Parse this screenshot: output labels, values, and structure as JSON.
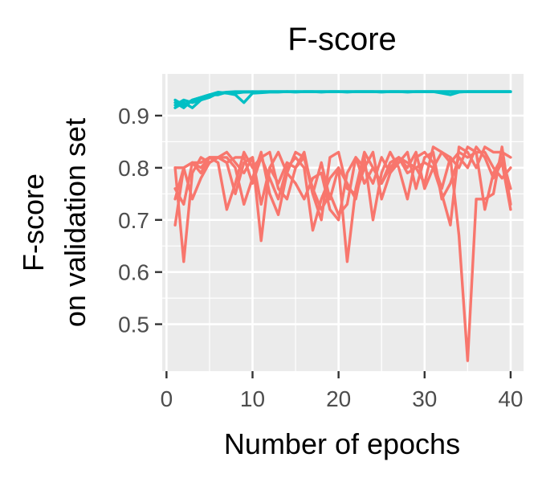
{
  "chart_data": {
    "type": "line",
    "title": "F-score",
    "xlabel": "Number of epochs",
    "ylabel_lines": [
      "F-score",
      "on validation set"
    ],
    "xlim": [
      -0.5,
      41.5
    ],
    "ylim": [
      0.41,
      0.98
    ],
    "x_ticks": [
      0,
      10,
      20,
      30,
      40
    ],
    "y_ticks": [
      0.5,
      0.6,
      0.7,
      0.8,
      0.9
    ],
    "x_tick_labels": [
      "0",
      "10",
      "20",
      "30",
      "40"
    ],
    "y_tick_labels": [
      "0.5",
      "0.6",
      "0.7",
      "0.8",
      "0.9"
    ],
    "grid": true,
    "legend": "none",
    "colors": {
      "group_a": "#00BFC4",
      "group_b": "#F8766D",
      "panel": "#EBEBEB",
      "grid": "#FFFFFF"
    },
    "x": [
      1,
      2,
      3,
      4,
      5,
      6,
      7,
      8,
      9,
      10,
      11,
      12,
      13,
      14,
      15,
      16,
      17,
      18,
      19,
      20,
      21,
      22,
      23,
      24,
      25,
      26,
      27,
      28,
      29,
      30,
      31,
      32,
      33,
      34,
      35,
      36,
      37,
      38,
      39,
      40
    ],
    "series": [
      {
        "group": "group_a",
        "values": [
          0.93,
          0.92,
          0.93,
          0.935,
          0.94,
          0.94,
          0.945,
          0.943,
          0.945,
          0.945,
          0.946,
          0.946,
          0.946,
          0.946,
          0.946,
          0.946,
          0.946,
          0.946,
          0.946,
          0.946,
          0.946,
          0.946,
          0.946,
          0.946,
          0.946,
          0.946,
          0.946,
          0.946,
          0.946,
          0.946,
          0.946,
          0.946,
          0.946,
          0.946,
          0.946,
          0.946,
          0.946,
          0.946,
          0.946,
          0.946
        ]
      },
      {
        "group": "group_a",
        "values": [
          0.915,
          0.925,
          0.915,
          0.93,
          0.94,
          0.945,
          0.943,
          0.94,
          0.925,
          0.943,
          0.944,
          0.945,
          0.945,
          0.946,
          0.945,
          0.946,
          0.946,
          0.945,
          0.946,
          0.946,
          0.945,
          0.946,
          0.946,
          0.946,
          0.945,
          0.946,
          0.946,
          0.945,
          0.946,
          0.946,
          0.946,
          0.943,
          0.94,
          0.945,
          0.946,
          0.946,
          0.946,
          0.946,
          0.946,
          0.946
        ]
      },
      {
        "group": "group_a",
        "values": [
          0.92,
          0.93,
          0.925,
          0.93,
          0.935,
          0.943,
          0.945,
          0.946,
          0.946,
          0.946,
          0.946,
          0.946,
          0.946,
          0.946,
          0.946,
          0.946,
          0.946,
          0.946,
          0.946,
          0.946,
          0.946,
          0.946,
          0.946,
          0.946,
          0.946,
          0.946,
          0.946,
          0.946,
          0.946,
          0.946,
          0.946,
          0.946,
          0.946,
          0.946,
          0.946,
          0.946,
          0.946,
          0.946,
          0.946,
          0.946
        ]
      },
      {
        "group": "group_a",
        "values": [
          0.925,
          0.915,
          0.93,
          0.935,
          0.94,
          0.942,
          0.944,
          0.945,
          0.945,
          0.946,
          0.945,
          0.946,
          0.946,
          0.946,
          0.946,
          0.946,
          0.946,
          0.946,
          0.946,
          0.946,
          0.946,
          0.946,
          0.946,
          0.946,
          0.946,
          0.946,
          0.946,
          0.946,
          0.946,
          0.946,
          0.946,
          0.946,
          0.946,
          0.946,
          0.946,
          0.946,
          0.946,
          0.946,
          0.946,
          0.946
        ]
      },
      {
        "group": "group_b",
        "values": [
          0.8,
          0.62,
          0.79,
          0.82,
          0.81,
          0.82,
          0.83,
          0.81,
          0.79,
          0.82,
          0.66,
          0.8,
          0.77,
          0.81,
          0.8,
          0.83,
          0.75,
          0.81,
          0.74,
          0.8,
          0.62,
          0.76,
          0.83,
          0.8,
          0.77,
          0.81,
          0.82,
          0.79,
          0.8,
          0.81,
          0.8,
          0.83,
          0.82,
          0.67,
          0.43,
          0.74,
          0.74,
          0.75,
          0.84,
          0.73
        ]
      },
      {
        "group": "group_b",
        "values": [
          0.69,
          0.8,
          0.81,
          0.81,
          0.82,
          0.82,
          0.81,
          0.82,
          0.82,
          0.77,
          0.82,
          0.83,
          0.76,
          0.74,
          0.8,
          0.82,
          0.76,
          0.72,
          0.75,
          0.71,
          0.73,
          0.82,
          0.77,
          0.8,
          0.77,
          0.8,
          0.82,
          0.81,
          0.8,
          0.77,
          0.84,
          0.83,
          0.81,
          0.83,
          0.82,
          0.83,
          0.83,
          0.8,
          0.78,
          0.8
        ]
      },
      {
        "group": "group_b",
        "values": [
          0.76,
          0.73,
          0.81,
          0.8,
          0.82,
          0.81,
          0.72,
          0.77,
          0.83,
          0.8,
          0.82,
          0.78,
          0.74,
          0.8,
          0.82,
          0.8,
          0.68,
          0.74,
          0.78,
          0.8,
          0.77,
          0.74,
          0.82,
          0.7,
          0.79,
          0.83,
          0.8,
          0.74,
          0.82,
          0.83,
          0.81,
          0.76,
          0.82,
          0.8,
          0.84,
          0.83,
          0.72,
          0.79,
          0.82,
          0.76
        ]
      },
      {
        "group": "group_b",
        "values": [
          0.8,
          0.8,
          0.74,
          0.78,
          0.81,
          0.82,
          0.82,
          0.8,
          0.73,
          0.78,
          0.83,
          0.75,
          0.71,
          0.79,
          0.83,
          0.82,
          0.75,
          0.7,
          0.82,
          0.83,
          0.76,
          0.75,
          0.8,
          0.83,
          0.74,
          0.79,
          0.82,
          0.8,
          0.83,
          0.76,
          0.8,
          0.75,
          0.69,
          0.84,
          0.83,
          0.8,
          0.84,
          0.83,
          0.83,
          0.82
        ]
      },
      {
        "group": "group_b",
        "values": [
          0.74,
          0.8,
          0.81,
          0.79,
          0.82,
          0.82,
          0.81,
          0.75,
          0.81,
          0.82,
          0.73,
          0.8,
          0.83,
          0.79,
          0.77,
          0.74,
          0.78,
          0.79,
          0.72,
          0.7,
          0.79,
          0.82,
          0.8,
          0.77,
          0.82,
          0.79,
          0.81,
          0.83,
          0.76,
          0.82,
          0.83,
          0.74,
          0.77,
          0.82,
          0.8,
          0.84,
          0.82,
          0.78,
          0.81,
          0.72
        ]
      }
    ]
  }
}
